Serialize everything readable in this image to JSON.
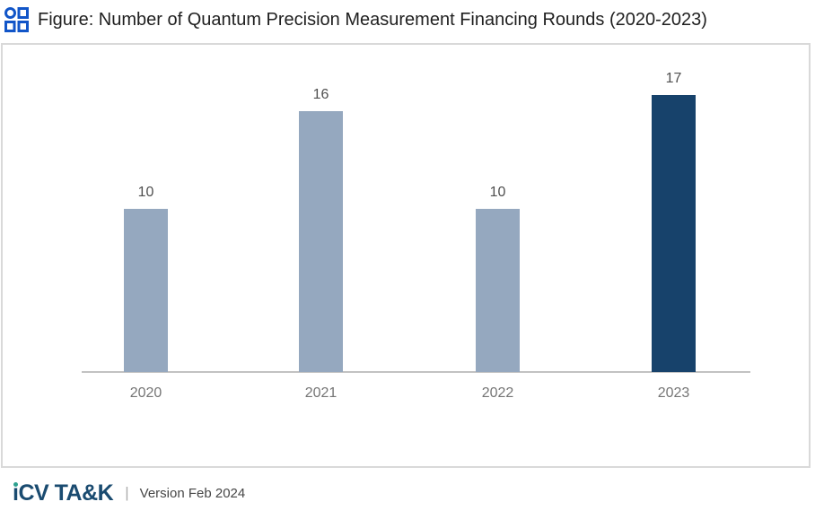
{
  "header": {
    "icon_name": "grid-layout-icon",
    "icon_color": "#1155C8",
    "title": "Figure: Number of Quantum Precision Measurement Financing Rounds (2020-2023)"
  },
  "chart_data": {
    "type": "bar",
    "title": "Number of Quantum Precision Measurement Financing Rounds (2020-2023)",
    "categories": [
      "2020",
      "2021",
      "2022",
      "2023"
    ],
    "values": [
      10,
      16,
      10,
      17
    ],
    "value_labels": [
      "10",
      "16",
      "10",
      "17"
    ],
    "bar_colors": [
      "#95A8BF",
      "#95A8BF",
      "#95A8BF",
      "#17426B"
    ],
    "highlighted_category": "2023",
    "xlabel": "",
    "ylabel": "",
    "ylim": [
      0,
      20
    ],
    "grid": false,
    "legend": false,
    "value_labels_shown": true,
    "axis_line_color": "#C2C2C2",
    "frame_border_color": "#D9D9D9"
  },
  "footer": {
    "logo": {
      "i_stem": "ı",
      "rest": "CV TA&K",
      "color": "#1A4B70",
      "dot_color": "#2EA18F"
    },
    "separator": "|",
    "version": "Version Feb 2024"
  }
}
